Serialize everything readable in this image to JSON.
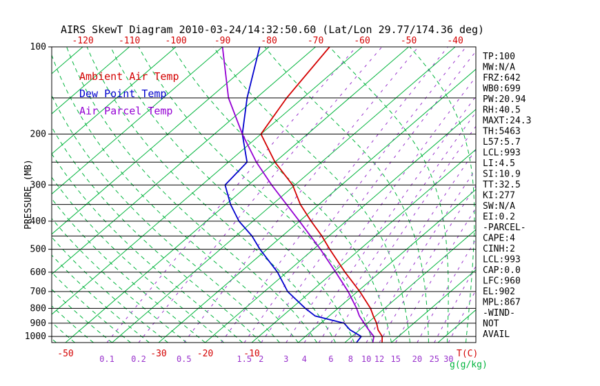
{
  "chart_data": {
    "type": "line",
    "title": "AIRS SkewT Diagram 2010-03-24/14:32:50.60 (Lat/Lon 29.77/174.36 deg)",
    "y_axis_label": "PRESSURE (MB)",
    "x_axis_label": "T(C)",
    "mixing_ratio_axis_label": "g(g/kg)",
    "y_axis_unit": "mb",
    "y_scale": "log",
    "pressure_range_mb": [
      100,
      1050
    ],
    "pressure_ticks": [
      100,
      200,
      300,
      400,
      500,
      600,
      700,
      800,
      900,
      1000
    ],
    "pressure_lines": [
      100,
      150,
      200,
      250,
      300,
      350,
      400,
      450,
      500,
      600,
      700,
      800,
      900,
      1000
    ],
    "top_temp_ticks": [
      -120,
      -110,
      -100,
      -90,
      -80,
      -70,
      -60,
      -50,
      -40
    ],
    "bottom_temp_ticks": [
      -50,
      -30,
      -20,
      -10
    ],
    "isotherms_C": {
      "min": -130,
      "max": 40,
      "step": 10
    },
    "moist_adiabats_start_C": {
      "min": -100,
      "max": 60,
      "step": 4
    },
    "mixing_ratio_lines_g_per_kg": [
      0.1,
      0.2,
      0.5,
      1,
      1.5,
      2,
      3,
      4,
      5,
      6,
      8,
      10,
      12,
      15,
      20,
      25,
      30
    ],
    "mixing_ratio_tick_labels": [
      0.1,
      0.2,
      0.5,
      1.5,
      2,
      3,
      4,
      6,
      8,
      10,
      12,
      15,
      20,
      25,
      30
    ],
    "series": [
      {
        "name": "Ambient Air Temp",
        "color": "#d40000",
        "points": [
          {
            "p": 1050,
            "t": 18
          },
          {
            "p": 1000,
            "t": 16.5
          },
          {
            "p": 950,
            "t": 14
          },
          {
            "p": 900,
            "t": 12
          },
          {
            "p": 850,
            "t": 9.5
          },
          {
            "p": 800,
            "t": 7
          },
          {
            "p": 700,
            "t": 0.5
          },
          {
            "p": 600,
            "t": -7.5
          },
          {
            "p": 500,
            "t": -16.5
          },
          {
            "p": 450,
            "t": -21.5
          },
          {
            "p": 400,
            "t": -27.5
          },
          {
            "p": 350,
            "t": -34
          },
          {
            "p": 300,
            "t": -40.5
          },
          {
            "p": 250,
            "t": -50
          },
          {
            "p": 200,
            "t": -60
          },
          {
            "p": 150,
            "t": -63.5
          },
          {
            "p": 100,
            "t": -67
          }
        ]
      },
      {
        "name": "Dew Point Temp",
        "color": "#0000cd",
        "points": [
          {
            "p": 1050,
            "t": 12.5
          },
          {
            "p": 1000,
            "t": 12
          },
          {
            "p": 950,
            "t": 8
          },
          {
            "p": 900,
            "t": 5
          },
          {
            "p": 850,
            "t": -3
          },
          {
            "p": 800,
            "t": -7
          },
          {
            "p": 700,
            "t": -15
          },
          {
            "p": 600,
            "t": -22
          },
          {
            "p": 500,
            "t": -31.5
          },
          {
            "p": 450,
            "t": -36.5
          },
          {
            "p": 400,
            "t": -43
          },
          {
            "p": 350,
            "t": -49
          },
          {
            "p": 300,
            "t": -55
          },
          {
            "p": 250,
            "t": -56
          },
          {
            "p": 200,
            "t": -64
          },
          {
            "p": 150,
            "t": -72
          },
          {
            "p": 100,
            "t": -82
          }
        ]
      },
      {
        "name": "Air Parcel Temp",
        "color": "#9400d3",
        "points": [
          {
            "p": 1050,
            "t": 16
          },
          {
            "p": 1000,
            "t": 14.7
          },
          {
            "p": 950,
            "t": 12
          },
          {
            "p": 900,
            "t": 9.3
          },
          {
            "p": 850,
            "t": 6.5
          },
          {
            "p": 800,
            "t": 4
          },
          {
            "p": 700,
            "t": -2
          },
          {
            "p": 600,
            "t": -9.5
          },
          {
            "p": 500,
            "t": -18.5
          },
          {
            "p": 400,
            "t": -30
          },
          {
            "p": 300,
            "t": -45
          },
          {
            "p": 250,
            "t": -54
          },
          {
            "p": 200,
            "t": -64
          },
          {
            "p": 150,
            "t": -76
          },
          {
            "p": 100,
            "t": -90
          }
        ]
      }
    ]
  },
  "stats_panel": {
    "lines": [
      "TP:100",
      "MW:N/A",
      "FRZ:642",
      "WB0:699",
      "PW:20.94",
      "RH:40.5",
      "MAXT:24.3",
      "TH:5463",
      "L57:5.7",
      "LCL:993",
      "LI:4.5",
      "SI:10.9",
      "TT:32.5",
      "KI:277",
      "SW:N/A",
      "EI:0.2",
      "-PARCEL-",
      "CAPE:4",
      "CINH:2",
      "LCL:993",
      "CAP:0.0",
      "LFC:960",
      "EL:902",
      "MPL:867",
      "-WIND-",
      "NOT",
      "AVAIL"
    ]
  },
  "colors": {
    "isoline_green": "#00b43c",
    "mixing_ratio_purple": "#9932cc",
    "axis_black": "#000000",
    "tick_red": "#d40000",
    "background": "#ffffff"
  }
}
